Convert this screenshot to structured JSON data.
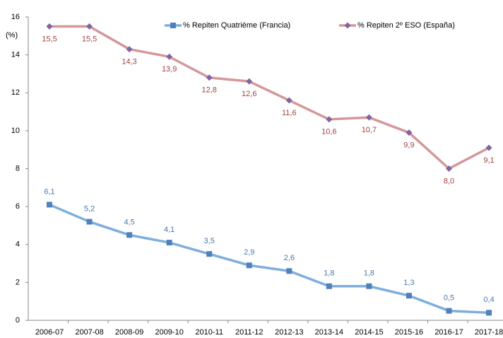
{
  "chart_data": {
    "type": "line",
    "y_label": "(%)",
    "categories": [
      "2006-07",
      "2007-08",
      "2008-09",
      "2009-10",
      "2010-11",
      "2011-12",
      "2012-13",
      "2013-14",
      "2014-15",
      "2015-16",
      "2016-17",
      "2017-18"
    ],
    "series": [
      {
        "name": "% Repiten Quatrième (Francia)",
        "color": "#7eaedc",
        "marker_color": "#4f81bd",
        "marker": "square",
        "label_color": "#4a78ad",
        "label_position": "above",
        "values": [
          6.1,
          5.2,
          4.5,
          4.1,
          3.5,
          2.9,
          2.6,
          1.8,
          1.8,
          1.3,
          0.5,
          0.4
        ],
        "value_labels": [
          "6,1",
          "5,2",
          "4,5",
          "4,1",
          "3,5",
          "2,9",
          "2,6",
          "1,8",
          "1,8",
          "1,3",
          "0,5",
          "0,4"
        ]
      },
      {
        "name": "% Repiten 2º ESO (España)",
        "color": "#d4979a",
        "marker_color": "#8064a2",
        "marker": "diamond",
        "label_color": "#a0433f",
        "label_position": "below",
        "values": [
          15.5,
          15.5,
          14.3,
          13.9,
          12.8,
          12.6,
          11.6,
          10.6,
          10.7,
          9.9,
          8.0,
          9.1
        ],
        "value_labels": [
          "15,5",
          "15,5",
          "14,3",
          "13,9",
          "12,8",
          "12,6",
          "11,6",
          "10,6",
          "10,7",
          "9,9",
          "8,0",
          "9,1"
        ]
      }
    ],
    "ylim": [
      0,
      16
    ],
    "yticks": [
      0,
      2,
      4,
      6,
      8,
      10,
      12,
      14,
      16
    ],
    "grid": false
  }
}
